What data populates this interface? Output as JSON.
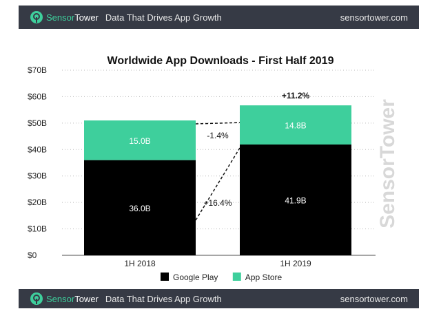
{
  "header": {
    "brand_a": "Sensor",
    "brand_b": "Tower",
    "tagline": "Data That Drives App Growth",
    "site": "sensortower.com"
  },
  "footer": {
    "brand_a": "Sensor",
    "brand_b": "Tower",
    "tagline": "Data That Drives App Growth",
    "site": "sensortower.com"
  },
  "watermark": "SensorTower",
  "colors": {
    "header_bg": "#363a45",
    "google_play": "#000000",
    "app_store": "#3ecf9c"
  },
  "chart_data": {
    "type": "bar",
    "stacked": true,
    "title": "Worldwide App Downloads - First Half 2019",
    "categories": [
      "1H 2018",
      "1H 2019"
    ],
    "series": [
      {
        "name": "Google Play",
        "values": [
          36.0,
          41.9
        ],
        "labels": [
          "36.0B",
          "41.9B"
        ]
      },
      {
        "name": "App Store",
        "values": [
          15.0,
          14.8
        ],
        "labels": [
          "15.0B",
          "14.8B"
        ]
      }
    ],
    "ylim": [
      0,
      70
    ],
    "yticks": [
      "$0",
      "$10B",
      "$20B",
      "$30B",
      "$40B",
      "$50B",
      "$60B",
      "$70B"
    ],
    "grid": true,
    "legend": "bottom",
    "annotations": {
      "total_growth": "+11.2%",
      "app_store_change": "-1.4%",
      "google_play_change": "+16.4%"
    }
  }
}
